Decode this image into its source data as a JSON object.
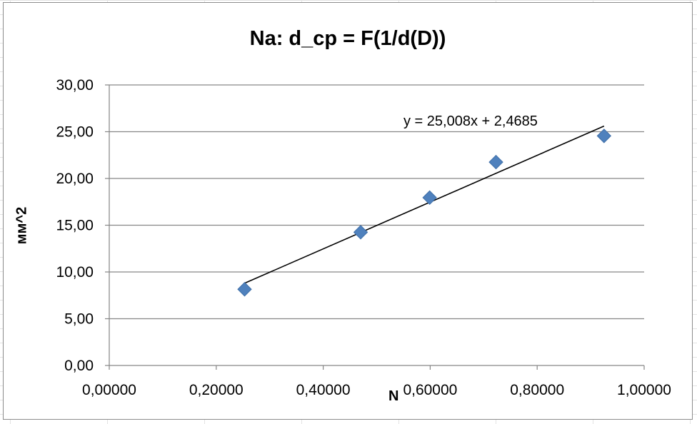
{
  "chart_data": {
    "type": "scatter",
    "title": "Na: d_cp = F(1/d(D))",
    "xlabel": "N",
    "ylabel": "мм^2",
    "xlim": [
      0,
      1
    ],
    "ylim": [
      0,
      30
    ],
    "x_ticks": [
      "0,00000",
      "0,20000",
      "0,40000",
      "0,60000",
      "0,80000",
      "1,00000"
    ],
    "y_ticks": [
      "0,00",
      "5,00",
      "10,00",
      "15,00",
      "20,00",
      "25,00",
      "30,00"
    ],
    "grid": "horizontal",
    "marker": "diamond",
    "marker_color": "#4f81bd",
    "points": [
      {
        "x": 0.253,
        "y": 8.15
      },
      {
        "x": 0.47,
        "y": 14.25
      },
      {
        "x": 0.599,
        "y": 17.95
      },
      {
        "x": 0.723,
        "y": 21.75
      },
      {
        "x": 0.925,
        "y": 24.55
      }
    ],
    "trendline": {
      "type": "linear",
      "slope": 25.008,
      "intercept": 2.4685,
      "x_range": [
        0.253,
        0.925
      ],
      "equation_label": "y = 25,008x + 2,4685"
    }
  }
}
